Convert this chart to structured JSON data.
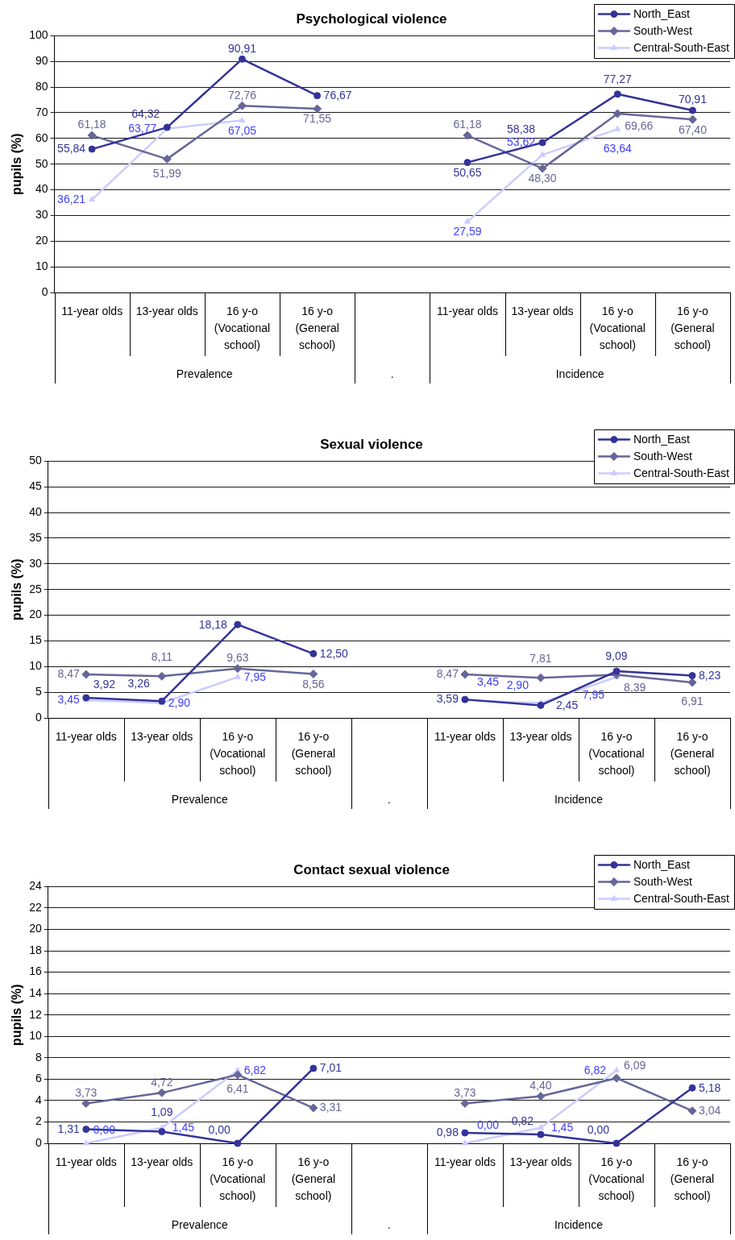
{
  "chart_data": [
    {
      "type": "line",
      "title": "Psychological violence",
      "ylabel": "pupils (%)",
      "categories": [
        "11-year olds",
        "13-year olds",
        "16 y-o (Vocational school)",
        "16 y-o (General school)",
        null,
        "11-year olds",
        "13-year olds",
        "16 y-o (Vocational school)",
        "16 y-o (General school)"
      ],
      "series": [
        {
          "name": "North_East",
          "color": "#333399",
          "marker": "circle",
          "values": [
            55.84,
            64.32,
            90.91,
            76.67,
            null,
            50.65,
            58.38,
            77.27,
            70.91
          ],
          "value_labels": [
            "55,84",
            "64,32",
            "90,91",
            "76,67",
            null,
            "50,65",
            "58,38",
            "77,27",
            "70,91"
          ]
        },
        {
          "name": "South-West",
          "color": "#666699",
          "marker": "diamond",
          "values": [
            61.18,
            51.99,
            72.76,
            71.55,
            null,
            61.18,
            48.3,
            69.66,
            67.4
          ],
          "value_labels": [
            "61,18",
            "51,99",
            "72,76",
            "71,55",
            null,
            "61,18",
            "48,30",
            "69,66",
            "67,40"
          ]
        },
        {
          "name": "Central-South-East",
          "color": "#ccccff",
          "marker": "triangle",
          "values": [
            36.21,
            63.77,
            67.05,
            null,
            null,
            27.59,
            53.62,
            63.64,
            null
          ],
          "value_labels": [
            "36,21",
            "63,77",
            "67,05",
            null,
            null,
            "27,59",
            "53,62",
            "63,64",
            null
          ]
        }
      ],
      "ylim": [
        0,
        100
      ],
      "yticks": [
        0,
        10,
        20,
        30,
        40,
        50,
        60,
        70,
        80,
        90,
        100
      ],
      "grid": "y",
      "legend": "top right",
      "annotations": [
        "Prevalence",
        ".",
        "Incidence"
      ]
    },
    {
      "type": "line",
      "title": "Sexual violence",
      "ylabel": "pupils (%)",
      "categories": [
        "11-year olds",
        "13-year olds",
        "16 y-o (Vocational school)",
        "16 y-o (General school)",
        null,
        "11-year olds",
        "13-year olds",
        "16 y-o (Vocational school)",
        "16 y-o (General school)"
      ],
      "series": [
        {
          "name": "North_East",
          "color": "#333399",
          "marker": "circle",
          "values": [
            3.92,
            3.26,
            18.18,
            12.5,
            null,
            3.59,
            2.45,
            9.09,
            8.23
          ],
          "value_labels": [
            "3,92",
            "3,26",
            "18,18",
            "12,50",
            null,
            "3,59",
            "2,45",
            "9,09",
            "8,23"
          ]
        },
        {
          "name": "South-West",
          "color": "#666699",
          "marker": "diamond",
          "values": [
            8.47,
            8.11,
            9.63,
            8.56,
            null,
            8.47,
            7.81,
            8.39,
            6.91
          ],
          "value_labels": [
            "8,47",
            "8,11",
            "9,63",
            "8,56",
            null,
            "8,47",
            "7,81",
            "8,39",
            "6,91"
          ]
        },
        {
          "name": "Central-South-East",
          "color": "#ccccff",
          "marker": "triangle",
          "values": [
            3.45,
            2.9,
            7.95,
            null,
            null,
            3.45,
            2.9,
            7.95,
            null
          ],
          "value_labels": [
            "3,45",
            "2,90",
            "7,95",
            null,
            null,
            "3,45",
            "2,90",
            "7,95",
            null
          ]
        }
      ],
      "ylim": [
        0,
        50
      ],
      "yticks": [
        0,
        5,
        10,
        15,
        20,
        25,
        30,
        35,
        40,
        45,
        50
      ],
      "grid": "y",
      "legend": "top right",
      "annotations": [
        "Prevalence",
        ".",
        "Incidence"
      ]
    },
    {
      "type": "line",
      "title": "Contact sexual violence",
      "ylabel": "pupils (%)",
      "categories": [
        "11-year olds",
        "13-year olds",
        "16 y-o (Vocational school)",
        "16 y-o (General school)",
        null,
        "11-year olds",
        "13-year olds",
        "16 y-o (Vocational school)",
        "16 y-o (General school)"
      ],
      "series": [
        {
          "name": "North_East",
          "color": "#333399",
          "marker": "circle",
          "values": [
            1.31,
            1.09,
            0,
            7.01,
            null,
            0.98,
            0.82,
            0,
            5.18
          ],
          "value_labels": [
            "1,31",
            "1,09",
            "0,00",
            "7,01",
            null,
            "0,98",
            "0,82",
            "0,00",
            "5,18"
          ]
        },
        {
          "name": "South-West",
          "color": "#666699",
          "marker": "diamond",
          "values": [
            3.73,
            4.72,
            6.41,
            3.31,
            null,
            3.73,
            4.4,
            6.09,
            3.04
          ],
          "value_labels": [
            "3,73",
            "4,72",
            "6,41",
            "3,31",
            null,
            "3,73",
            "4,40",
            "6,09",
            "3,04"
          ]
        },
        {
          "name": "Central-South-East",
          "color": "#ccccff",
          "marker": "triangle",
          "values": [
            0,
            1.45,
            6.82,
            null,
            null,
            0,
            1.45,
            6.82,
            null
          ],
          "value_labels": [
            "0,00",
            "1,45",
            "6,82",
            null,
            null,
            "0,00",
            "1,45",
            "6,82",
            null
          ]
        }
      ],
      "ylim": [
        0,
        24
      ],
      "yticks": [
        0,
        2,
        4,
        6,
        8,
        10,
        12,
        14,
        16,
        18,
        20,
        22,
        24
      ],
      "grid": "y",
      "legend": "top right",
      "annotations": [
        "Prevalence",
        ".",
        "Incidence"
      ]
    }
  ]
}
